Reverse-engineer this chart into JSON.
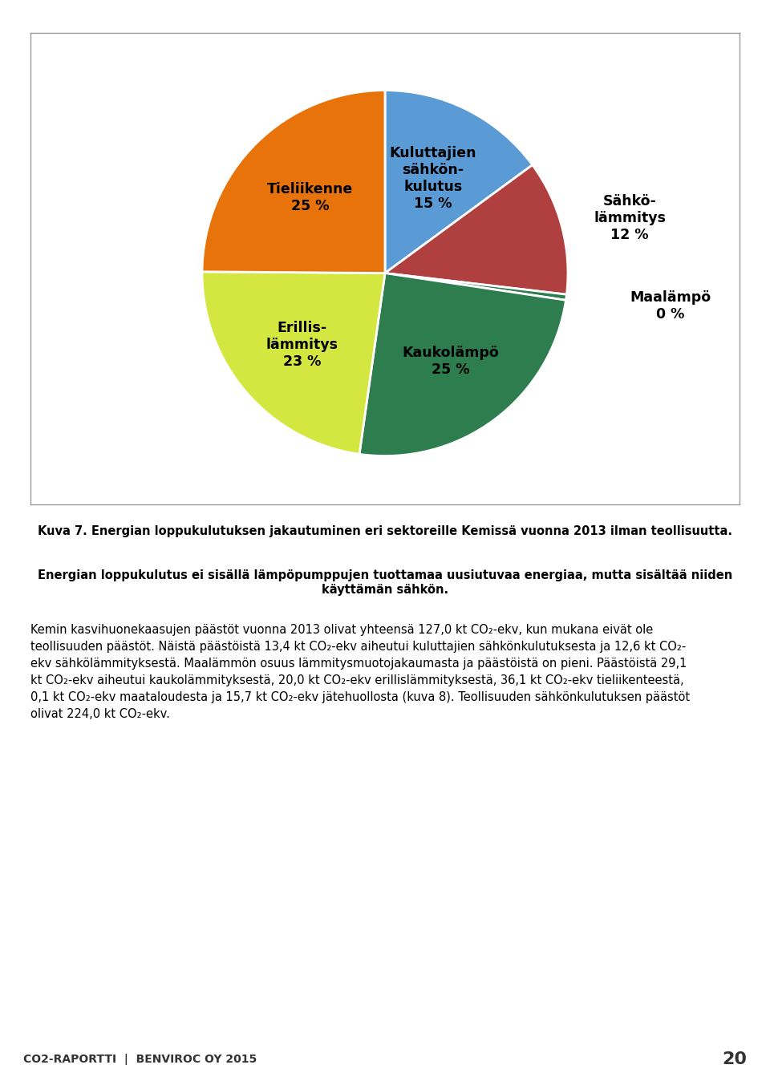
{
  "pie_values": [
    15,
    12,
    0.5,
    25,
    23,
    25
  ],
  "pie_colors": [
    "#5B9BD5",
    "#B04040",
    "#2E7D4F",
    "#2E7D4F",
    "#D4E640",
    "#E8730A"
  ],
  "label_texts": [
    "Kuluttajien\nsähkön-\nkulutus\n15 %",
    "Sähkö-\nlämmitys\n12 %",
    "Maalämpö\n0 %",
    "Kaukolämpö\n25 %",
    "Erillis-\nlämmitys\n23 %",
    "Tieliikenne\n25 %"
  ],
  "label_inside": [
    true,
    false,
    false,
    true,
    true,
    true
  ],
  "label_radii": [
    0.58,
    1.18,
    1.35,
    0.6,
    0.6,
    0.58
  ],
  "label_has": [
    "center",
    "left",
    "left",
    "center",
    "center",
    "center"
  ],
  "caption_line1": "Kuva 7. Energian loppukulutuksen jakautuminen eri sektoreille Kemissä vuonna 2013 ilman teollisuutta.",
  "caption_line2": "Energian loppukulutus ei sisällä lämpöpumppujen tuottamaa uusiutuvaa energiaa, mutta sisältää niiden\nkäyttämän sähkön.",
  "body_lines": [
    "Kemin kasvihuonekaasujen päästöt vuonna 2013 olivat yhteensä 127,0 kt CO₂-ekv, kun mukana eivät ole",
    "teollisuuden päästöt. Näistä päästöistä 13,4 kt CO₂-ekv aiheutui kuluttajien sähkönkulutuksesta ja 12,6 kt CO₂-",
    "ekv sähkölämmityksestä. Maalämmön osuus lämmitysmuotojakaumasta ja päästöistä on pieni. Päästöistä 29,1",
    "kt CO₂-ekv aiheutui kaukolämmityksestä, 20,0 kt CO₂-ekv erillislämmityksestä, 36,1 kt CO₂-ekv tieliikenteestä,",
    "0,1 kt CO₂-ekv maataloudesta ja 15,7 kt CO₂-ekv jätehuollosta (kuva 8). Teollisuuden sähkönkulutuksen päästöt",
    "olivat 224,0 kt CO₂-ekv."
  ],
  "footer_text": "CO2-RAPORTTI  |  BENVIROC OY 2015",
  "footer_page": "20",
  "footer_bg": "#C5D9E8",
  "background_color": "#FFFFFF",
  "border_color": "#999999"
}
